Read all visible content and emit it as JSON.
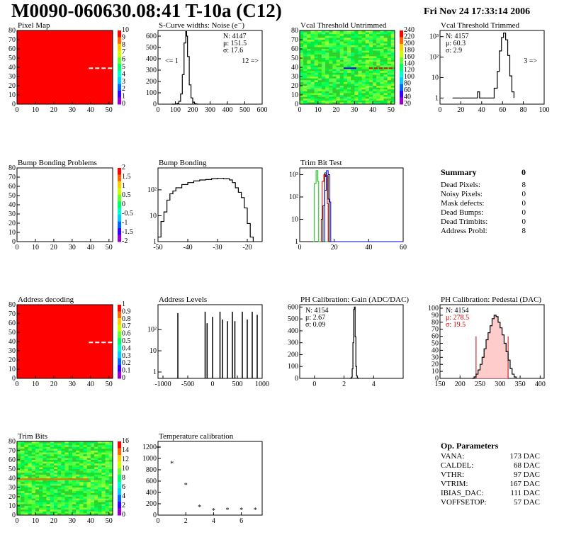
{
  "header": {
    "title": "M0090-060630.08:41 T-10a (C12)",
    "date": "Fri Nov 24 17:33:14 2006"
  },
  "colors": {
    "map_red": "#ff0000",
    "hist_line": "#000000",
    "pedestal_red": "#cc0000",
    "trim_green": "#00cc00",
    "trim_blue": "#0000cc",
    "trim_red": "#cc0000"
  },
  "chart_data": [
    {
      "name": "pixel-map",
      "type": "heatmap",
      "title": "Pixel Map",
      "x": {
        "min": 0,
        "max": 52,
        "ticks": [
          0,
          10,
          20,
          30,
          40,
          50
        ]
      },
      "y": {
        "min": 0,
        "max": 80,
        "ticks": [
          0,
          10,
          20,
          30,
          40,
          50,
          60,
          70,
          80
        ]
      },
      "fill": "uniform red (all pixels alive)",
      "marks": [
        {
          "kind": "dashed-row",
          "row": 39,
          "from_col": 39,
          "to_col": 52,
          "color": "white"
        }
      ],
      "palette_ticks": [
        "10",
        "9",
        "8",
        "7",
        "6",
        "5",
        "4",
        "3",
        "2",
        "1",
        "0"
      ]
    },
    {
      "name": "scurve-widths",
      "type": "line",
      "title": "S-Curve widths: Noise (e⁻)",
      "x": {
        "min": 0,
        "max": 600,
        "ticks": [
          0,
          100,
          200,
          300,
          400,
          500,
          600
        ]
      },
      "y": {
        "min": 0,
        "max": 650,
        "ticks": [
          0,
          100,
          200,
          300,
          400,
          500,
          600
        ]
      },
      "points": [
        [
          80,
          0
        ],
        [
          100,
          2
        ],
        [
          110,
          8
        ],
        [
          120,
          25
        ],
        [
          130,
          90
        ],
        [
          140,
          260
        ],
        [
          150,
          540
        ],
        [
          160,
          640
        ],
        [
          165,
          600
        ],
        [
          170,
          420
        ],
        [
          180,
          170
        ],
        [
          190,
          55
        ],
        [
          200,
          18
        ],
        [
          210,
          5
        ],
        [
          220,
          1
        ],
        [
          230,
          0
        ]
      ],
      "stats": [
        "N: 4147",
        "μ: 151.5",
        "σ: 17.6"
      ],
      "annotations": [
        "<= 1",
        "12 =>"
      ]
    },
    {
      "name": "vcal-untrimmed",
      "type": "heatmap",
      "title": "Vcal Threshold Untrimmed",
      "x": {
        "min": 0,
        "max": 52,
        "ticks": [
          0,
          10,
          20,
          30,
          40,
          50
        ]
      },
      "y": {
        "min": 0,
        "max": 80,
        "ticks": [
          0,
          10,
          20,
          30,
          40,
          50,
          60,
          70,
          80
        ]
      },
      "fill": "noisy green map",
      "marks": [
        {
          "kind": "row-segment",
          "row": 39,
          "from_col": 24,
          "to_col": 31,
          "color": "blue"
        },
        {
          "kind": "row-segment",
          "row": 39,
          "from_col": 38,
          "to_col": 52,
          "color": "red-dashed"
        }
      ],
      "palette_ticks": [
        "240",
        "220",
        "200",
        "180",
        "160",
        "140",
        "120",
        "100",
        "80",
        "60",
        "40",
        "20"
      ]
    },
    {
      "name": "vcal-trimmed",
      "type": "line",
      "title": "Vcal Threshold Trimmed",
      "log_y": true,
      "x": {
        "min": 0,
        "max": 100,
        "ticks": [
          0,
          20,
          40,
          60,
          80,
          100
        ]
      },
      "y": {
        "min": 0.5,
        "max": 2000,
        "ticks": [
          "1",
          "10",
          "10²",
          "10³"
        ]
      },
      "points": [
        [
          12,
          1
        ],
        [
          14,
          1
        ],
        [
          36,
          2
        ],
        [
          38,
          1
        ],
        [
          52,
          3
        ],
        [
          55,
          20
        ],
        [
          57,
          200
        ],
        [
          59,
          900
        ],
        [
          61,
          1500
        ],
        [
          63,
          700
        ],
        [
          65,
          120
        ],
        [
          67,
          12
        ],
        [
          69,
          2
        ],
        [
          71,
          1
        ]
      ],
      "stats": [
        "N: 4157",
        "μ: 60.3",
        "σ: 2.9"
      ],
      "annotations": [
        "3 =>"
      ]
    },
    {
      "name": "bump-bonding-problems",
      "type": "heatmap",
      "title": "Bump Bonding Problems",
      "x": {
        "min": 0,
        "max": 52,
        "ticks": [
          0,
          10,
          20,
          30,
          40,
          50
        ]
      },
      "y": {
        "min": 0,
        "max": 80,
        "ticks": [
          0,
          10,
          20,
          30,
          40,
          50,
          60,
          70,
          80
        ]
      },
      "fill": "empty",
      "palette_ticks": [
        "2",
        "1.5",
        "1",
        "0.5",
        "0",
        "-0.5",
        "-1",
        "-1.5",
        "-2"
      ]
    },
    {
      "name": "bump-bonding",
      "type": "line",
      "title": "Bump Bonding",
      "log_y": true,
      "x": {
        "min": -50,
        "max": -15,
        "ticks": [
          -50,
          -40,
          -30,
          -20
        ]
      },
      "y": {
        "min": 1,
        "max": 700,
        "ticks": [
          "1",
          "10",
          "10²"
        ]
      },
      "points": [
        [
          -50,
          1.5
        ],
        [
          -49,
          6
        ],
        [
          -48,
          14
        ],
        [
          -47,
          40
        ],
        [
          -46,
          70
        ],
        [
          -45,
          90
        ],
        [
          -44,
          120
        ],
        [
          -42,
          160
        ],
        [
          -40,
          190
        ],
        [
          -38,
          220
        ],
        [
          -36,
          240
        ],
        [
          -34,
          250
        ],
        [
          -32,
          270
        ],
        [
          -30,
          280
        ],
        [
          -28,
          270
        ],
        [
          -26,
          240
        ],
        [
          -25,
          190
        ],
        [
          -24,
          120
        ],
        [
          -23,
          80
        ],
        [
          -22,
          50
        ],
        [
          -21,
          20
        ],
        [
          -20,
          5
        ],
        [
          -19,
          1.5
        ],
        [
          -18,
          1
        ]
      ]
    },
    {
      "name": "trim-bit-test",
      "type": "line",
      "title": "Trim Bit Test",
      "log_y": true,
      "x": {
        "min": 0,
        "max": 60,
        "ticks": [
          0,
          20,
          40,
          60
        ]
      },
      "y": {
        "min": 1,
        "max": 2000,
        "ticks": [
          "1",
          "10",
          "10²",
          "10³"
        ]
      },
      "series": [
        {
          "color": "green",
          "points": [
            [
              8,
              1
            ],
            [
              8.5,
              400
            ],
            [
              9.5,
              1500
            ],
            [
              10.5,
              500
            ],
            [
              11,
              1
            ]
          ]
        },
        {
          "color": "red",
          "points": [
            [
              12,
              1
            ],
            [
              12.5,
              10
            ],
            [
              13,
              500
            ],
            [
              14,
              1000
            ],
            [
              15,
              800
            ],
            [
              16,
              50
            ],
            [
              16.5,
              1
            ]
          ]
        },
        {
          "color": "black",
          "points": [
            [
              13,
              1
            ],
            [
              13.5,
              40
            ],
            [
              14.5,
              1200
            ],
            [
              15.5,
              900
            ],
            [
              16.5,
              80
            ],
            [
              17,
              1
            ]
          ]
        },
        {
          "color": "blue",
          "points": [
            [
              14,
              1
            ],
            [
              14.5,
              200
            ],
            [
              15.5,
              1500
            ],
            [
              16.5,
              1000
            ],
            [
              17.5,
              60
            ],
            [
              18,
              1
            ]
          ]
        }
      ]
    },
    {
      "name": "address-decoding",
      "type": "heatmap",
      "title": "Address decoding",
      "x": {
        "min": 0,
        "max": 52,
        "ticks": [
          0,
          10,
          20,
          30,
          40,
          50
        ]
      },
      "y": {
        "min": 0,
        "max": 80,
        "ticks": [
          0,
          10,
          20,
          30,
          40,
          50,
          60,
          70,
          80
        ]
      },
      "fill": "uniform red",
      "marks": [
        {
          "kind": "dashed-row",
          "row": 39,
          "from_col": 39,
          "to_col": 52,
          "color": "white"
        }
      ],
      "palette_ticks": [
        "1",
        "0.9",
        "0.8",
        "0.7",
        "0.6",
        "0.5",
        "0.4",
        "0.3",
        "0.2",
        "0.1",
        "0"
      ]
    },
    {
      "name": "address-levels",
      "type": "bar",
      "title": "Address Levels",
      "log_y": true,
      "x": {
        "min": -1100,
        "max": 1000,
        "ticks": [
          -1000,
          -500,
          0,
          500,
          1000
        ]
      },
      "y": {
        "min": 0.5,
        "max": 1500,
        "ticks": [
          "1",
          "10",
          "10²"
        ]
      },
      "peaks": [
        [
          -700,
          600
        ],
        [
          -150,
          700
        ],
        [
          -110,
          200
        ],
        [
          0,
          400
        ],
        [
          150,
          700
        ],
        [
          200,
          300
        ],
        [
          300,
          250
        ],
        [
          400,
          700
        ],
        [
          450,
          250
        ],
        [
          600,
          700
        ],
        [
          700,
          300
        ],
        [
          800,
          700
        ],
        [
          900,
          500
        ]
      ]
    },
    {
      "name": "ph-gain",
      "type": "line",
      "title": "PH Calibration: Gain (ADC/DAC)",
      "x": {
        "min": -1,
        "max": 6,
        "ticks": [
          0,
          2,
          4
        ]
      },
      "y": {
        "min": 0,
        "max": 620,
        "ticks": [
          0,
          100,
          200,
          300,
          400,
          500,
          600
        ]
      },
      "points": [
        [
          2.4,
          0
        ],
        [
          2.5,
          10
        ],
        [
          2.55,
          80
        ],
        [
          2.6,
          300
        ],
        [
          2.65,
          580
        ],
        [
          2.7,
          600
        ],
        [
          2.75,
          350
        ],
        [
          2.8,
          100
        ],
        [
          2.85,
          20
        ],
        [
          2.9,
          2
        ],
        [
          3.0,
          0
        ]
      ],
      "stats": [
        "N: 4154",
        "μ: 2.67",
        "σ: 0.09"
      ]
    },
    {
      "name": "ph-pedestal",
      "type": "line",
      "title": "PH Calibration: Pedestal (DAC)",
      "x": {
        "min": 150,
        "max": 410,
        "ticks": [
          150,
          200,
          250,
          300,
          350,
          400
        ]
      },
      "y": {
        "min": 0,
        "max": 105,
        "ticks": [
          0,
          10,
          20,
          30,
          40,
          50,
          60,
          70,
          80,
          90,
          100
        ]
      },
      "points": [
        [
          230,
          0
        ],
        [
          235,
          2
        ],
        [
          240,
          6
        ],
        [
          245,
          12
        ],
        [
          250,
          20
        ],
        [
          255,
          30
        ],
        [
          260,
          42
        ],
        [
          265,
          55
        ],
        [
          270,
          65
        ],
        [
          275,
          75
        ],
        [
          280,
          85
        ],
        [
          285,
          90
        ],
        [
          290,
          88
        ],
        [
          295,
          80
        ],
        [
          300,
          72
        ],
        [
          305,
          62
        ],
        [
          310,
          50
        ],
        [
          315,
          38
        ],
        [
          320,
          26
        ],
        [
          325,
          14
        ],
        [
          330,
          6
        ],
        [
          335,
          2
        ],
        [
          340,
          0
        ]
      ],
      "fit_range": [
        240,
        320
      ],
      "stats": [
        "N: 4154",
        "μ: 278.5",
        "σ: 19.5"
      ]
    },
    {
      "name": "trim-bits",
      "type": "heatmap",
      "title": "Trim Bits",
      "x": {
        "min": 0,
        "max": 52,
        "ticks": [
          0,
          10,
          20,
          30,
          40,
          50
        ]
      },
      "y": {
        "min": 0,
        "max": 80,
        "ticks": [
          0,
          10,
          20,
          30,
          40,
          50,
          60,
          70,
          80
        ]
      },
      "fill": "noisy green map",
      "marks": [
        {
          "kind": "row-segment",
          "row": 39,
          "from_col": 0,
          "to_col": 39,
          "color": "orange"
        }
      ],
      "palette_ticks": [
        "16",
        "14",
        "12",
        "10",
        "8",
        "6",
        "4",
        "2",
        "0"
      ]
    },
    {
      "name": "temperature-calibration",
      "type": "scatter",
      "title": "Temperature calibration",
      "x": {
        "min": 0,
        "max": 7.5,
        "ticks": [
          0,
          2,
          4,
          6
        ]
      },
      "y": {
        "min": 0,
        "max": 1300,
        "ticks": [
          0,
          200,
          400,
          600,
          800,
          1000,
          1200
        ]
      },
      "points": [
        [
          0,
          1200
        ],
        [
          1,
          930
        ],
        [
          2,
          550
        ],
        [
          3,
          160
        ],
        [
          4,
          100
        ],
        [
          5,
          110
        ],
        [
          6,
          110
        ],
        [
          7,
          110
        ]
      ]
    }
  ],
  "summary": {
    "title": "Summary",
    "total": "0",
    "rows": [
      {
        "label": "Dead Pixels:",
        "value": "8"
      },
      {
        "label": "Noisy Pixels:",
        "value": "0"
      },
      {
        "label": "Mask defects:",
        "value": "0"
      },
      {
        "label": "Dead Bumps:",
        "value": "0"
      },
      {
        "label": "Dead Trimbits:",
        "value": "0"
      },
      {
        "label": "Address Probl:",
        "value": "8"
      }
    ]
  },
  "op_params": {
    "title": "Op. Parameters",
    "rows": [
      {
        "label": "VANA:",
        "value": "173 DAC"
      },
      {
        "label": "CALDEL:",
        "value": "68 DAC"
      },
      {
        "label": "VTHR:",
        "value": "97 DAC"
      },
      {
        "label": "VTRIM:",
        "value": "167 DAC"
      },
      {
        "label": "IBIAS_DAC:",
        "value": "111 DAC"
      },
      {
        "label": "VOFFSETOP:",
        "value": "57 DAC"
      }
    ]
  }
}
